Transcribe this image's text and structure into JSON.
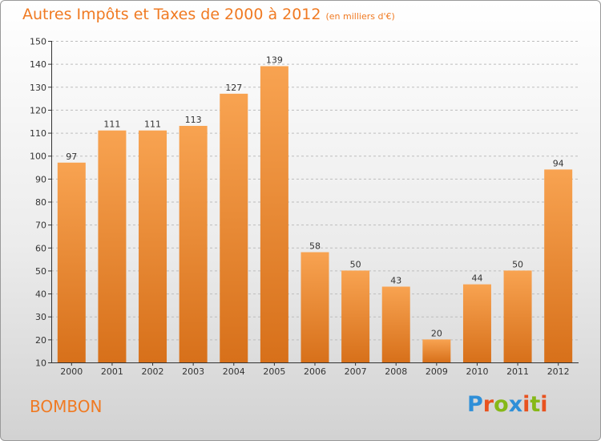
{
  "header": {
    "title": "Autres Impôts et Taxes de 2000 à 2012",
    "unit": "(en milliers d'€)"
  },
  "footer": {
    "commune": "BOMBON",
    "logo_text": "Proxiti",
    "logo_colors": [
      "#2f8fd8",
      "#e8521f",
      "#86b817",
      "#2f8fd8",
      "#e8521f",
      "#86b817",
      "#e8521f"
    ]
  },
  "colors": {
    "bar_top": "#f8a351",
    "bar_bottom": "#d7701a",
    "accent": "#f07a22",
    "axis": "#333333",
    "grid": "#bdbdbd"
  },
  "chart_data": {
    "type": "bar",
    "title": "Autres Impôts et Taxes de 2000 à 2012",
    "subtitle": "(en milliers d'€)",
    "xlabel": "",
    "ylabel": "",
    "categories": [
      "2000",
      "2001",
      "2002",
      "2003",
      "2004",
      "2005",
      "2006",
      "2007",
      "2008",
      "2009",
      "2010",
      "2011",
      "2012"
    ],
    "values": [
      97,
      111,
      111,
      113,
      127,
      139,
      58,
      50,
      43,
      20,
      44,
      50,
      94
    ],
    "ylim": [
      10,
      150
    ],
    "yticks": [
      10,
      20,
      30,
      40,
      50,
      60,
      70,
      80,
      90,
      100,
      110,
      120,
      130,
      140,
      150
    ],
    "grid": true,
    "data_labels": true
  }
}
